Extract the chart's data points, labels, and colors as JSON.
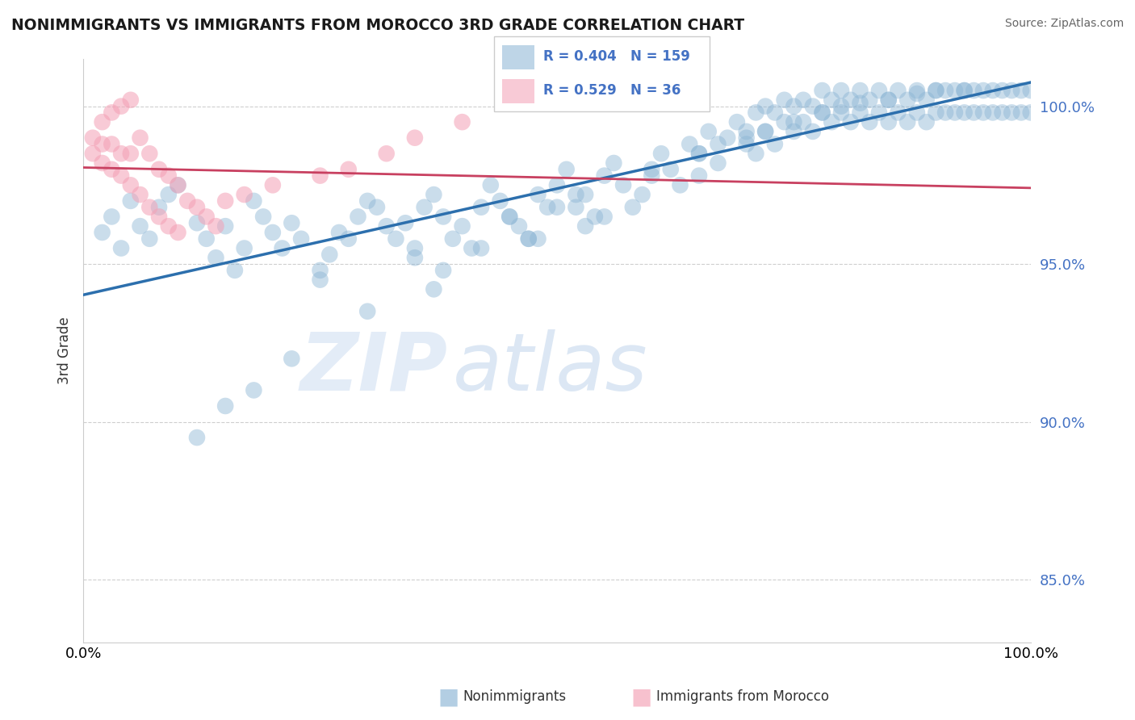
{
  "title": "NONIMMIGRANTS VS IMMIGRANTS FROM MOROCCO 3RD GRADE CORRELATION CHART",
  "source": "Source: ZipAtlas.com",
  "ylabel": "3rd Grade",
  "blue_R": 0.404,
  "blue_N": 159,
  "pink_R": 0.529,
  "pink_N": 36,
  "blue_color": "#8ab4d4",
  "blue_line_color": "#2c6fad",
  "pink_color": "#f4a0b5",
  "pink_line_color": "#c84060",
  "xlim": [
    0,
    1
  ],
  "ylim": [
    0.83,
    1.015
  ],
  "yticks": [
    0.85,
    0.9,
    0.95,
    1.0
  ],
  "ytick_labels": [
    "85.0%",
    "90.0%",
    "95.0%",
    "100.0%"
  ],
  "xtick_labels": [
    "0.0%",
    "100.0%"
  ],
  "legend_label1": "Nonimmigrants",
  "legend_label2": "Immigrants from Morocco",
  "blue_x": [
    0.02,
    0.03,
    0.04,
    0.05,
    0.06,
    0.07,
    0.08,
    0.09,
    0.1,
    0.12,
    0.13,
    0.14,
    0.15,
    0.16,
    0.17,
    0.18,
    0.19,
    0.2,
    0.21,
    0.22,
    0.23,
    0.25,
    0.26,
    0.27,
    0.28,
    0.29,
    0.3,
    0.31,
    0.32,
    0.33,
    0.34,
    0.35,
    0.36,
    0.37,
    0.38,
    0.39,
    0.4,
    0.41,
    0.42,
    0.43,
    0.44,
    0.45,
    0.46,
    0.47,
    0.48,
    0.49,
    0.5,
    0.51,
    0.52,
    0.53,
    0.54,
    0.55,
    0.56,
    0.57,
    0.58,
    0.59,
    0.6,
    0.61,
    0.62,
    0.63,
    0.64,
    0.65,
    0.65,
    0.66,
    0.67,
    0.67,
    0.68,
    0.69,
    0.7,
    0.7,
    0.71,
    0.71,
    0.72,
    0.72,
    0.73,
    0.73,
    0.74,
    0.74,
    0.75,
    0.75,
    0.76,
    0.76,
    0.77,
    0.77,
    0.78,
    0.78,
    0.79,
    0.79,
    0.8,
    0.8,
    0.81,
    0.81,
    0.82,
    0.82,
    0.83,
    0.83,
    0.84,
    0.84,
    0.85,
    0.85,
    0.86,
    0.86,
    0.87,
    0.87,
    0.88,
    0.88,
    0.89,
    0.89,
    0.9,
    0.9,
    0.91,
    0.91,
    0.92,
    0.92,
    0.93,
    0.93,
    0.94,
    0.94,
    0.95,
    0.95,
    0.96,
    0.96,
    0.97,
    0.97,
    0.98,
    0.98,
    0.99,
    0.99,
    1.0,
    1.0,
    0.5,
    0.55,
    0.48,
    0.52,
    0.42,
    0.38,
    0.3,
    0.22,
    0.18,
    0.15,
    0.12,
    0.25,
    0.35,
    0.45,
    0.6,
    0.7,
    0.75,
    0.8,
    0.85,
    0.9,
    0.47,
    0.53,
    0.37,
    0.65,
    0.72,
    0.78,
    0.82,
    0.88,
    0.93
  ],
  "blue_y": [
    0.96,
    0.965,
    0.955,
    0.97,
    0.962,
    0.958,
    0.968,
    0.972,
    0.975,
    0.963,
    0.958,
    0.952,
    0.962,
    0.948,
    0.955,
    0.97,
    0.965,
    0.96,
    0.955,
    0.963,
    0.958,
    0.948,
    0.953,
    0.96,
    0.958,
    0.965,
    0.97,
    0.968,
    0.962,
    0.958,
    0.963,
    0.955,
    0.968,
    0.972,
    0.965,
    0.958,
    0.962,
    0.955,
    0.968,
    0.975,
    0.97,
    0.965,
    0.962,
    0.958,
    0.972,
    0.968,
    0.975,
    0.98,
    0.968,
    0.972,
    0.965,
    0.978,
    0.982,
    0.975,
    0.968,
    0.972,
    0.978,
    0.985,
    0.98,
    0.975,
    0.988,
    0.985,
    0.978,
    0.992,
    0.988,
    0.982,
    0.99,
    0.995,
    0.988,
    0.992,
    0.998,
    0.985,
    1.0,
    0.992,
    0.998,
    0.988,
    1.002,
    0.995,
    1.0,
    0.992,
    1.002,
    0.995,
    1.0,
    0.992,
    1.005,
    0.998,
    1.002,
    0.995,
    1.005,
    0.998,
    1.002,
    0.995,
    1.005,
    0.998,
    1.002,
    0.995,
    1.005,
    0.998,
    1.002,
    0.995,
    1.005,
    0.998,
    1.002,
    0.995,
    1.005,
    0.998,
    1.002,
    0.995,
    1.005,
    0.998,
    1.005,
    0.998,
    1.005,
    0.998,
    1.005,
    0.998,
    1.005,
    0.998,
    1.005,
    0.998,
    1.005,
    0.998,
    1.005,
    0.998,
    1.005,
    0.998,
    1.005,
    0.998,
    1.005,
    0.998,
    0.968,
    0.965,
    0.958,
    0.972,
    0.955,
    0.948,
    0.935,
    0.92,
    0.91,
    0.905,
    0.895,
    0.945,
    0.952,
    0.965,
    0.98,
    0.99,
    0.995,
    1.0,
    1.002,
    1.005,
    0.958,
    0.962,
    0.942,
    0.985,
    0.992,
    0.998,
    1.001,
    1.004,
    1.005
  ],
  "pink_x": [
    0.01,
    0.01,
    0.02,
    0.02,
    0.02,
    0.03,
    0.03,
    0.03,
    0.04,
    0.04,
    0.04,
    0.05,
    0.05,
    0.05,
    0.06,
    0.06,
    0.07,
    0.07,
    0.08,
    0.08,
    0.09,
    0.09,
    0.1,
    0.1,
    0.11,
    0.12,
    0.13,
    0.14,
    0.15,
    0.17,
    0.2,
    0.25,
    0.28,
    0.32,
    0.35,
    0.4
  ],
  "pink_y": [
    0.985,
    0.99,
    0.982,
    0.988,
    0.995,
    0.98,
    0.988,
    0.998,
    0.978,
    0.985,
    1.0,
    0.975,
    0.985,
    1.002,
    0.972,
    0.99,
    0.968,
    0.985,
    0.965,
    0.98,
    0.962,
    0.978,
    0.96,
    0.975,
    0.97,
    0.968,
    0.965,
    0.962,
    0.97,
    0.972,
    0.975,
    0.978,
    0.98,
    0.985,
    0.99,
    0.995
  ]
}
